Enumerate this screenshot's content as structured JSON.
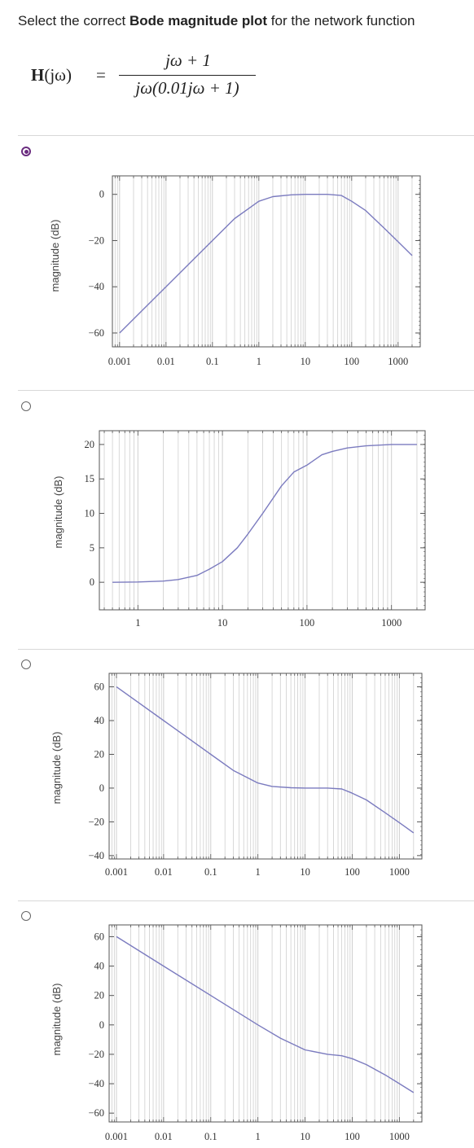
{
  "question": {
    "prefix": "Select the correct ",
    "bold": "Bode magnitude plot",
    "suffix": " for the network function"
  },
  "formula": {
    "lhs_H": "H",
    "lhs_arg": "(jω)",
    "equals": "=",
    "numerator": "jω + 1",
    "denominator": "jω(0.01jω + 1)"
  },
  "options": [
    {
      "selected": true
    },
    {
      "selected": false
    },
    {
      "selected": false
    },
    {
      "selected": false
    }
  ],
  "colors": {
    "curve": "#7b7bbf",
    "grid": "#cfcfcf",
    "frame": "#555555",
    "radio_selected": "#6a2c7f"
  },
  "chart_data": [
    {
      "type": "line",
      "ylabel": "magnitude (dB)",
      "x_scale": "log",
      "xlim": [
        0.0007,
        3000
      ],
      "ylim": [
        -66,
        8
      ],
      "x_ticks": [
        "0.001",
        "0.01",
        "0.1",
        "1",
        "10",
        "100",
        "1000"
      ],
      "y_ticks": [
        "0",
        "-20",
        "-40",
        "-60"
      ],
      "series": [
        {
          "x": [
            0.001,
            0.01,
            0.1,
            0.3,
            1,
            2,
            5,
            10,
            30,
            60,
            100,
            200,
            500,
            1000,
            2000
          ],
          "y": [
            -60,
            -40,
            -20,
            -10.5,
            -3,
            -1,
            -0.2,
            0,
            0,
            -0.5,
            -3,
            -7,
            -14.6,
            -20.5,
            -26.5
          ]
        }
      ]
    },
    {
      "type": "line",
      "ylabel": "magnitude (dB)",
      "x_scale": "log",
      "xlim": [
        0.35,
        2500
      ],
      "ylim": [
        -4,
        22
      ],
      "x_ticks": [
        "1",
        "10",
        "100",
        "1000"
      ],
      "y_ticks": [
        "20",
        "15",
        "10",
        "5",
        "0"
      ],
      "series": [
        {
          "x": [
            0.5,
            1,
            2,
            3,
            5,
            7,
            10,
            15,
            20,
            30,
            50,
            70,
            100,
            150,
            200,
            300,
            500,
            1000,
            2000
          ],
          "y": [
            0,
            0.04,
            0.17,
            0.4,
            1,
            1.9,
            3,
            5,
            7,
            10,
            14,
            16,
            17,
            18.5,
            19,
            19.5,
            19.8,
            20,
            20
          ]
        }
      ]
    },
    {
      "type": "line",
      "ylabel": "magnitude (dB)",
      "x_scale": "log",
      "xlim": [
        0.0007,
        3000
      ],
      "ylim": [
        -42,
        68
      ],
      "x_ticks": [
        "0.001",
        "0.01",
        "0.1",
        "1",
        "10",
        "100",
        "1000"
      ],
      "y_ticks": [
        "60",
        "40",
        "20",
        "0",
        "-20",
        "-40"
      ],
      "series": [
        {
          "x": [
            0.001,
            0.01,
            0.1,
            0.3,
            1,
            2,
            5,
            10,
            30,
            60,
            100,
            200,
            500,
            1000,
            2000
          ],
          "y": [
            60,
            40,
            20,
            10.5,
            3,
            1,
            0.2,
            0,
            0,
            -0.5,
            -3,
            -7,
            -14.6,
            -20.5,
            -26.5
          ]
        }
      ]
    },
    {
      "type": "line",
      "ylabel": "magnitude (dB)",
      "x_scale": "log",
      "xlim": [
        0.0007,
        3000
      ],
      "ylim": [
        -66,
        68
      ],
      "x_ticks": [
        "0.001",
        "0.01",
        "0.1",
        "1",
        "10",
        "100",
        "1000"
      ],
      "y_ticks": [
        "60",
        "40",
        "20",
        "0",
        "-20",
        "-40",
        "-60"
      ],
      "series": [
        {
          "x": [
            0.001,
            0.01,
            0.1,
            1,
            3,
            10,
            30,
            60,
            100,
            200,
            500,
            1000,
            2000
          ],
          "y": [
            60,
            40,
            20,
            0,
            -9,
            -17,
            -20,
            -21,
            -23,
            -27,
            -34,
            -40,
            -46
          ]
        }
      ]
    }
  ]
}
